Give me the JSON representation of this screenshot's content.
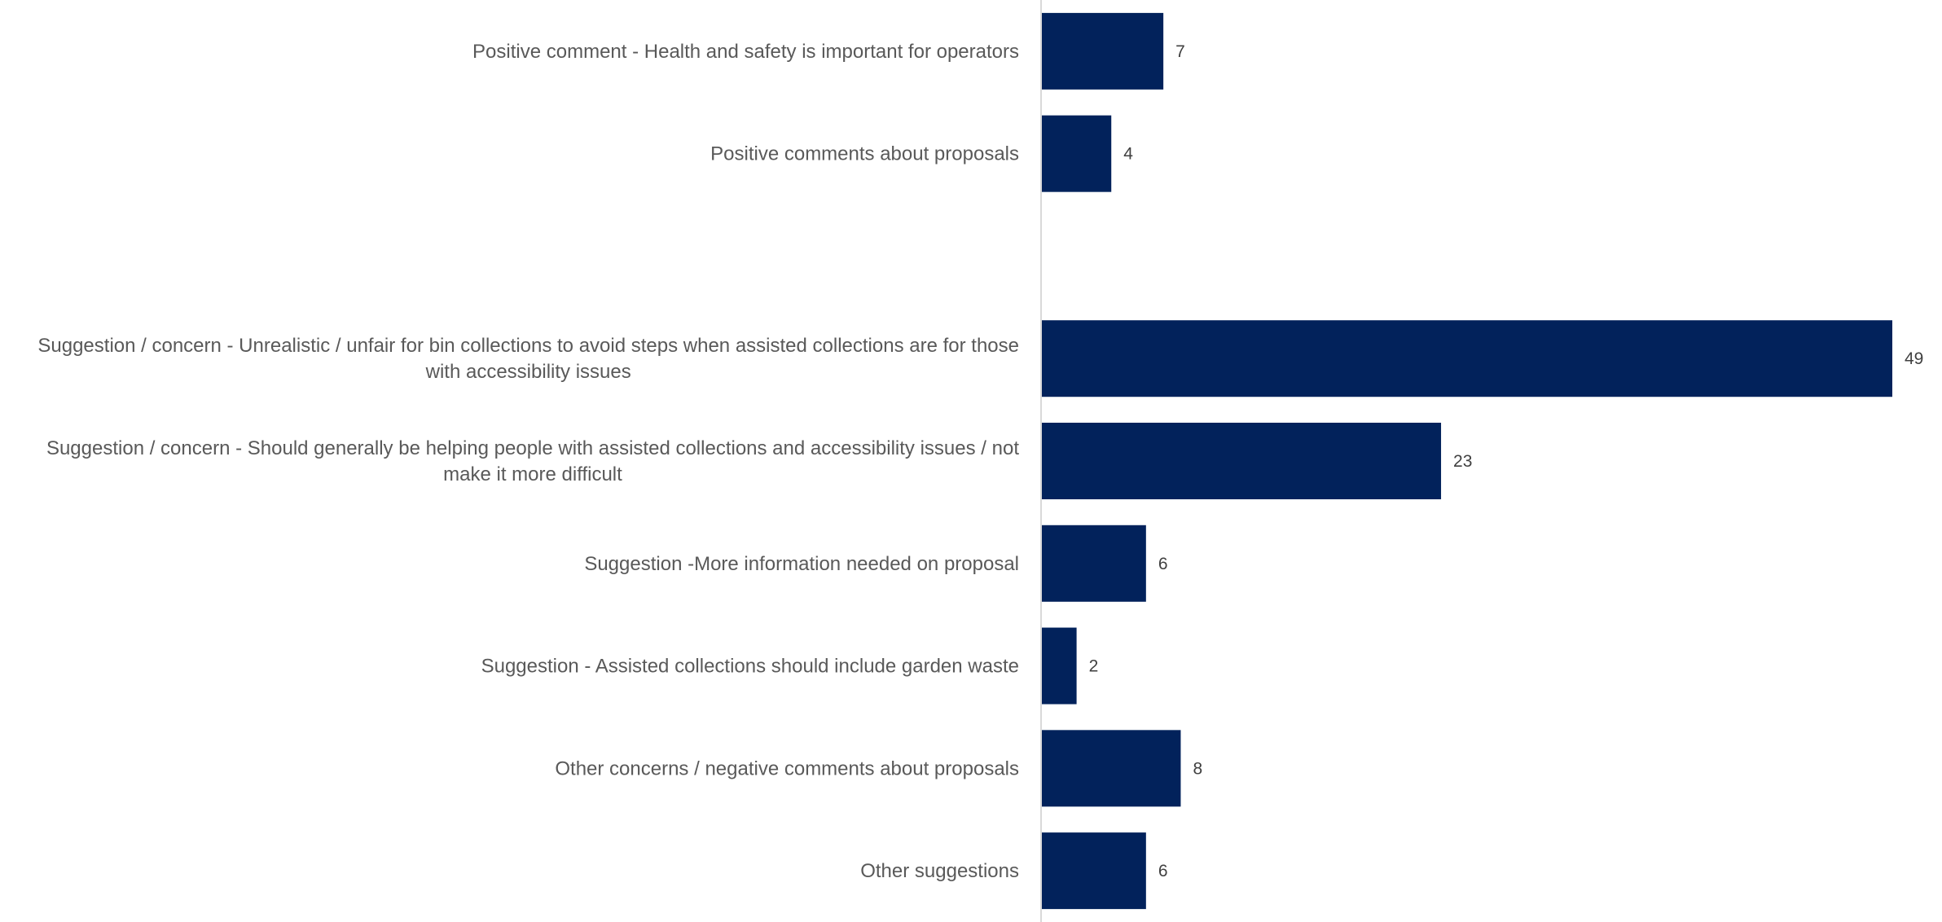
{
  "chart_data": {
    "type": "bar",
    "orientation": "horizontal",
    "categories": [
      [
        "Positive comment - Health and safety is important for operators"
      ],
      [
        "Positive comments about proposals"
      ],
      [
        ""
      ],
      [
        "Suggestion / concern - Unrealistic / unfair for bin collections to avoid steps when assisted collections are for those",
        "with accessibility issues"
      ],
      [
        "Suggestion / concern - Should generally be helping people with assisted collections and accessibility issues / not",
        "make it more difficult"
      ],
      [
        "Suggestion -More information needed on proposal"
      ],
      [
        "Suggestion - Assisted collections should include garden waste"
      ],
      [
        "Other concerns / negative comments about proposals"
      ],
      [
        "Other suggestions"
      ]
    ],
    "values": [
      7,
      4,
      null,
      49,
      23,
      6,
      2,
      8,
      6
    ],
    "xlim": [
      0,
      49
    ],
    "bar_color": "#02225B",
    "axis_color": "#D9D9D9",
    "label_color": "#595959",
    "value_label_color": "#404040",
    "grid": false,
    "legend": "none",
    "data_labels": true
  }
}
